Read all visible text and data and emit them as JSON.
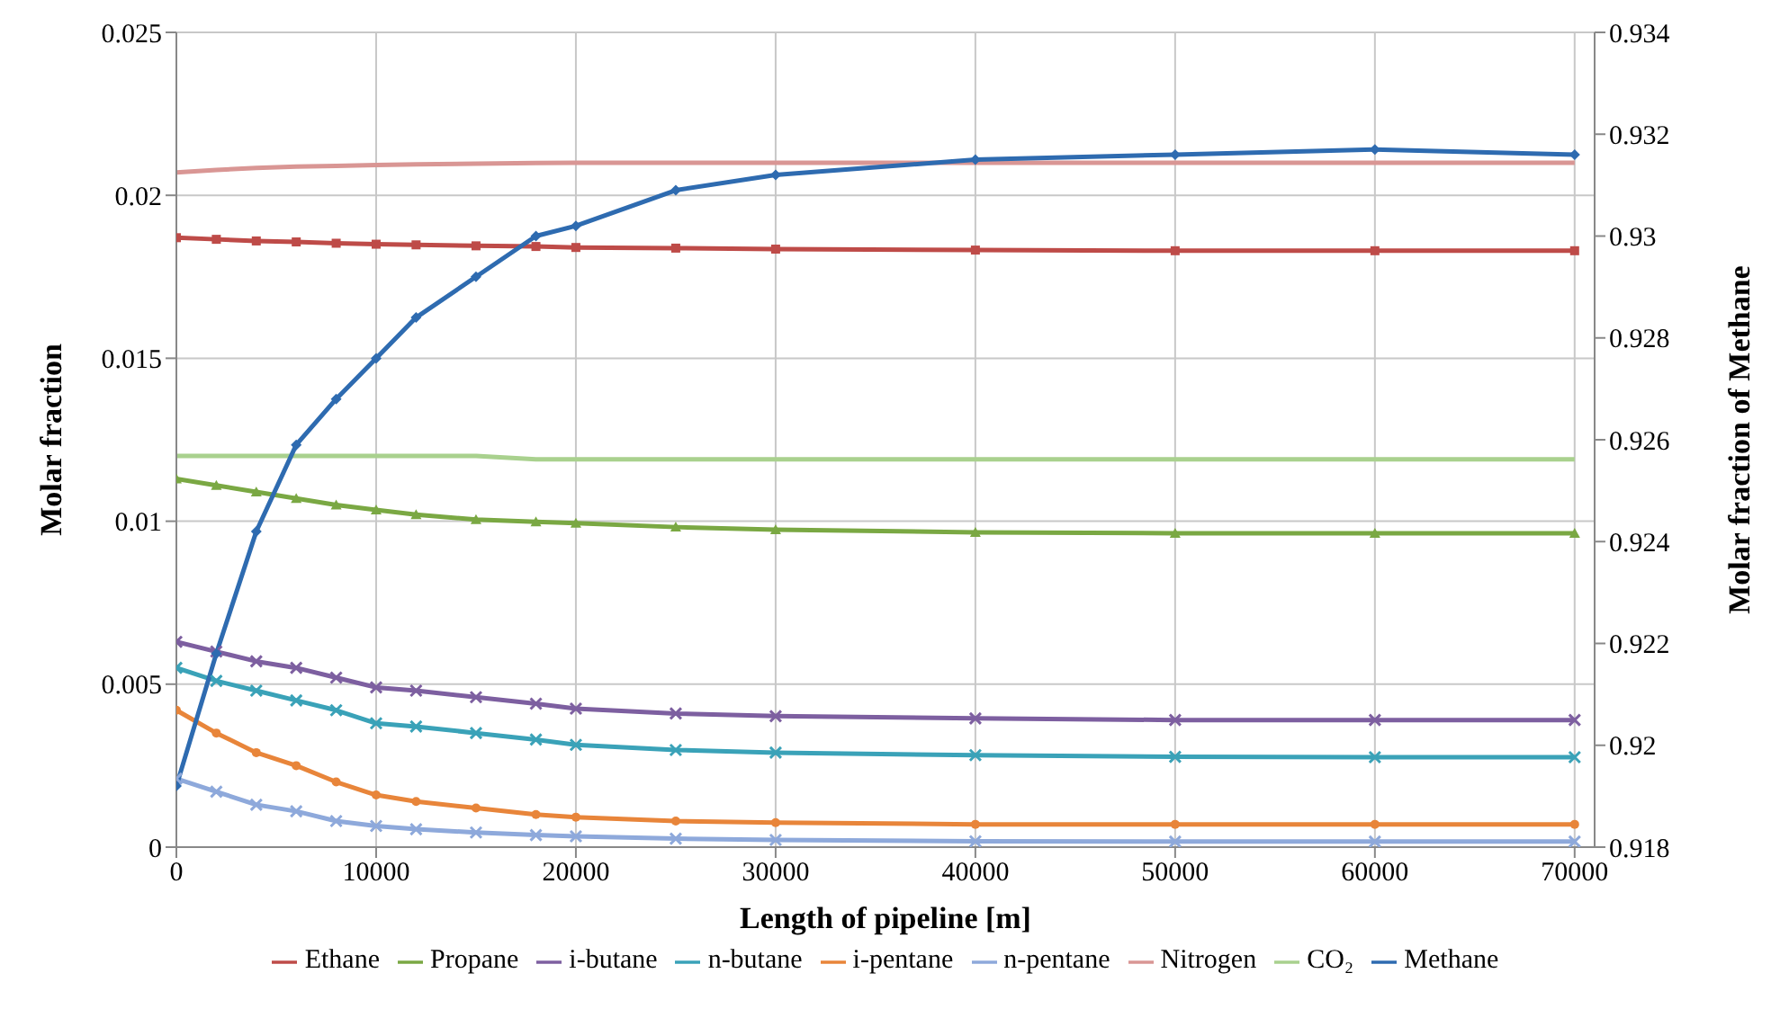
{
  "chart_data": {
    "type": "line",
    "xlabel": "Length of pipeline [m]",
    "ylabel": "Molar fraction",
    "y2label": "Molar fraction of Methane",
    "x": [
      0,
      2000,
      4000,
      6000,
      8000,
      10000,
      12000,
      15000,
      18000,
      20000,
      25000,
      30000,
      40000,
      50000,
      60000,
      70000
    ],
    "xlim": [
      0,
      71000
    ],
    "xticks": [
      0,
      10000,
      20000,
      30000,
      40000,
      50000,
      60000,
      70000
    ],
    "ylim": [
      0,
      0.025
    ],
    "yticks": [
      0,
      0.005,
      0.01,
      0.015,
      0.02,
      0.025
    ],
    "y2lim": [
      0.918,
      0.934
    ],
    "y2ticks": [
      0.918,
      0.92,
      0.922,
      0.924,
      0.926,
      0.928,
      0.93,
      0.932,
      0.934
    ],
    "grid": true,
    "legend": "bottom",
    "line_style": "solid",
    "series": [
      {
        "name": "Ethane",
        "color": "#be4b48",
        "marker": "square",
        "values": [
          0.0187,
          0.01865,
          0.0186,
          0.01857,
          0.01853,
          0.0185,
          0.01848,
          0.01845,
          0.01843,
          0.0184,
          0.01838,
          0.01835,
          0.01832,
          0.0183,
          0.0183,
          0.0183
        ]
      },
      {
        "name": "Propane",
        "color": "#7aa843",
        "marker": "triangle",
        "values": [
          0.0113,
          0.0111,
          0.0109,
          0.0107,
          0.0105,
          0.01035,
          0.0102,
          0.01005,
          0.00998,
          0.00994,
          0.00982,
          0.00974,
          0.00966,
          0.00963,
          0.00963,
          0.00963
        ]
      },
      {
        "name": "i-butane",
        "color": "#7d5fa0",
        "marker": "cross",
        "values": [
          0.0063,
          0.006,
          0.0057,
          0.0055,
          0.0052,
          0.0049,
          0.0048,
          0.0046,
          0.0044,
          0.00425,
          0.0041,
          0.00402,
          0.00395,
          0.0039,
          0.0039,
          0.0039
        ]
      },
      {
        "name": "n-butane",
        "color": "#3aa2b8",
        "marker": "cross",
        "values": [
          0.0055,
          0.0051,
          0.0048,
          0.0045,
          0.0042,
          0.0038,
          0.0037,
          0.0035,
          0.0033,
          0.00314,
          0.00298,
          0.0029,
          0.00282,
          0.00277,
          0.00276,
          0.00276
        ]
      },
      {
        "name": "i-pentane",
        "color": "#e8853a",
        "marker": "circle",
        "values": [
          0.0042,
          0.0035,
          0.0029,
          0.0025,
          0.002,
          0.0016,
          0.0014,
          0.0012,
          0.001,
          0.00092,
          0.0008,
          0.00075,
          0.0007,
          0.0007,
          0.0007,
          0.0007
        ]
      },
      {
        "name": "n-pentane",
        "color": "#8ea9db",
        "marker": "cross",
        "values": [
          0.0021,
          0.0017,
          0.0013,
          0.0011,
          0.0008,
          0.00065,
          0.00055,
          0.00045,
          0.00037,
          0.00033,
          0.00026,
          0.00022,
          0.00018,
          0.00017,
          0.00017,
          0.00017
        ]
      },
      {
        "name": "Nitrogen",
        "color": "#d99694",
        "marker": "none",
        "values": [
          0.0207,
          0.02078,
          0.02084,
          0.02088,
          0.0209,
          0.02093,
          0.02095,
          0.02097,
          0.02099,
          0.021,
          0.021,
          0.021,
          0.021,
          0.021,
          0.021,
          0.021
        ]
      },
      {
        "name": "CO₂",
        "color": "#a9d18e",
        "marker": "none",
        "values": [
          0.012,
          0.012,
          0.012,
          0.012,
          0.012,
          0.012,
          0.012,
          0.012,
          0.0119,
          0.0119,
          0.0119,
          0.0119,
          0.0119,
          0.0119,
          0.0119,
          0.0119
        ]
      },
      {
        "name": "Methane",
        "color": "#2e6bb0",
        "marker": "diamond",
        "axis": "y2",
        "values": [
          0.9192,
          0.9218,
          0.9242,
          0.9259,
          0.9268,
          0.9276,
          0.9284,
          0.9292,
          0.93,
          0.9302,
          0.9309,
          0.9312,
          0.9315,
          0.9316,
          0.9317,
          0.9316
        ]
      }
    ]
  }
}
